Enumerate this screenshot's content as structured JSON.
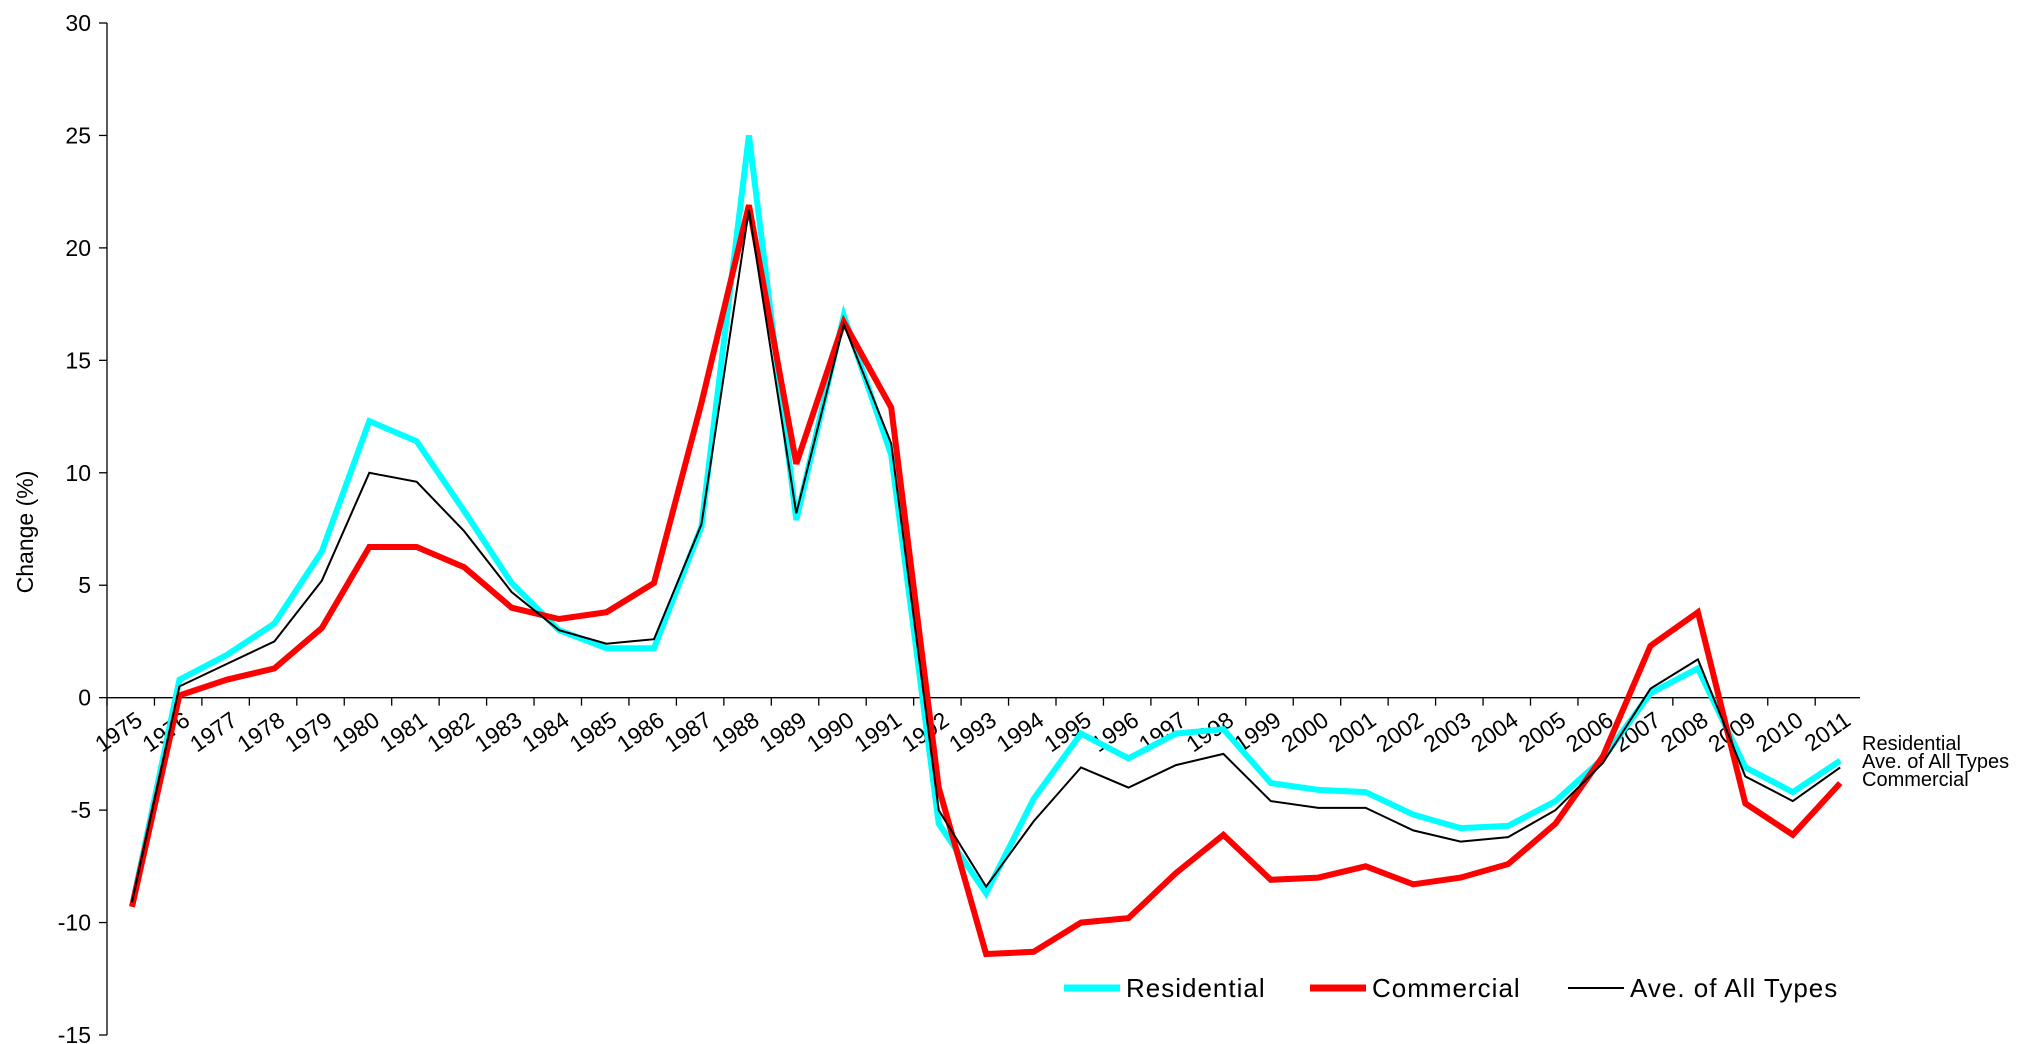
{
  "chart_data": {
    "type": "line",
    "ylabel": "Change (%)",
    "ylim": [
      -15,
      30
    ],
    "yticks": [
      -15,
      -10,
      -5,
      0,
      5,
      10,
      15,
      20,
      25,
      30
    ],
    "categories": [
      "1975",
      "1976",
      "1977",
      "1978",
      "1979",
      "1980",
      "1981",
      "1982",
      "1983",
      "1984",
      "1985",
      "1986",
      "1987",
      "1988",
      "1989",
      "1990",
      "1991",
      "1992",
      "1993",
      "1994",
      "1995",
      "1996",
      "1997",
      "1998",
      "1999",
      "2000",
      "2001",
      "2002",
      "2003",
      "2004",
      "2005",
      "2006",
      "2007",
      "2008",
      "2009",
      "2010",
      "2011"
    ],
    "series": [
      {
        "name": "Residential",
        "color": "#00FFFF",
        "values": [
          -9.3,
          0.8,
          1.9,
          3.3,
          6.5,
          12.3,
          11.4,
          8.3,
          5.1,
          3.0,
          2.2,
          2.2,
          7.6,
          25.0,
          7.9,
          17.0,
          10.8,
          -5.6,
          -8.7,
          -4.5,
          -1.6,
          -2.7,
          -1.6,
          -1.4,
          -3.8,
          -4.1,
          -4.2,
          -5.2,
          -5.8,
          -5.7,
          -4.6,
          -2.7,
          0.2,
          1.3,
          -3.1,
          -4.2,
          -2.8
        ],
        "end_label": "Residential"
      },
      {
        "name": "Commercial",
        "color": "#FF0000",
        "values": [
          -9.3,
          0.1,
          0.8,
          1.3,
          3.1,
          6.7,
          6.7,
          5.8,
          4.0,
          3.5,
          3.8,
          5.1,
          13.1,
          21.9,
          10.4,
          16.7,
          12.9,
          -4.0,
          -11.4,
          -11.3,
          -10.0,
          -9.8,
          -7.8,
          -6.1,
          -8.1,
          -8.0,
          -7.5,
          -8.3,
          -8.0,
          -7.4,
          -5.6,
          -2.6,
          2.3,
          3.8,
          -4.7,
          -6.1,
          -3.8
        ],
        "end_label": "Commercial"
      },
      {
        "name": "Ave. of All Types",
        "color": "#000000",
        "values": [
          -9.1,
          0.5,
          1.5,
          2.5,
          5.2,
          10.0,
          9.6,
          7.4,
          4.7,
          3.0,
          2.4,
          2.6,
          7.7,
          21.7,
          8.2,
          16.6,
          11.3,
          -5.0,
          -8.4,
          -5.5,
          -3.1,
          -4.0,
          -3.0,
          -2.5,
          -4.6,
          -4.9,
          -4.9,
          -5.9,
          -6.4,
          -6.2,
          -5.0,
          -2.9,
          0.4,
          1.7,
          -3.5,
          -4.6,
          -3.1
        ],
        "end_label": "Ave. of All Types"
      }
    ],
    "legend": {
      "placement": "bottom-right",
      "items": [
        {
          "label": "Residential",
          "color": "#00FFFF"
        },
        {
          "label": "Commercial",
          "color": "#FF0000"
        },
        {
          "label": "Ave. of All Types",
          "color": "#000000"
        }
      ]
    }
  }
}
